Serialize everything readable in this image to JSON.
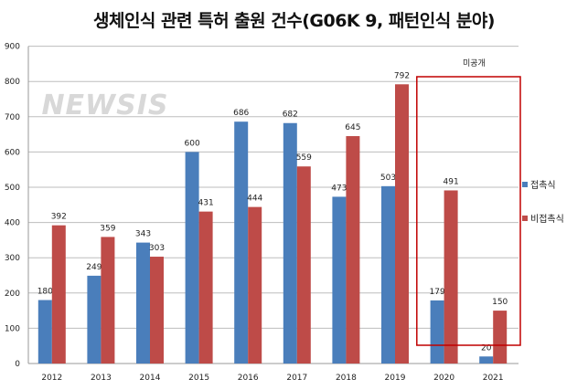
{
  "chart_data": {
    "type": "bar",
    "title": "생체인식 관련 특허 출원 건수(G06K 9, 패턴인식 분야)",
    "categories": [
      "2012",
      "2013",
      "2014",
      "2015",
      "2016",
      "2017",
      "2018",
      "2019",
      "2020",
      "2021"
    ],
    "series": [
      {
        "name": "접촉식",
        "color": "#4a7ebb",
        "values": [
          180,
          249,
          343,
          600,
          686,
          682,
          473,
          503,
          179,
          20
        ]
      },
      {
        "name": "비접촉식",
        "color": "#be4b48",
        "values": [
          392,
          359,
          303,
          431,
          444,
          559,
          645,
          792,
          491,
          150
        ]
      }
    ],
    "ylim": [
      0,
      900
    ],
    "yticks": [
      0,
      100,
      200,
      300,
      400,
      500,
      600,
      700,
      800,
      900
    ],
    "grid": true,
    "legend": "right",
    "annotation": {
      "text": "미공개",
      "categories": [
        "2020",
        "2021"
      ],
      "box_color": "#c00000"
    },
    "watermark": "NEWSIS"
  }
}
